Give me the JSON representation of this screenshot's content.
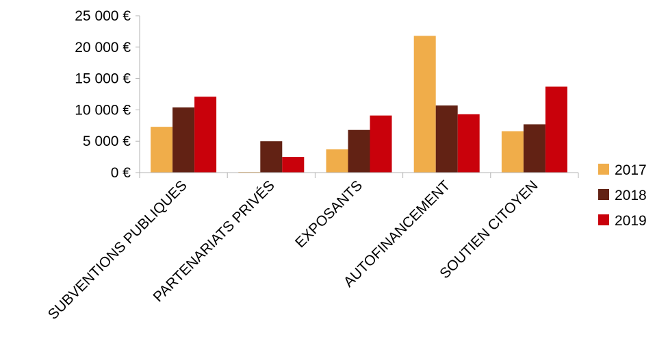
{
  "chart_data": {
    "type": "bar",
    "categories": [
      "SUBVENTIONS PUBLIQUES",
      "PARTENARIATS PRIVÉS",
      "EXPOSANTS",
      "AUTOFINANCEMENT",
      "SOUTIEN CITOYEN"
    ],
    "series": [
      {
        "name": "2017",
        "color": "#f0ad4a",
        "values": [
          7300,
          100,
          3700,
          21800,
          6600
        ]
      },
      {
        "name": "2018",
        "color": "#622214",
        "values": [
          10400,
          5000,
          6800,
          10700,
          7700
        ]
      },
      {
        "name": "2019",
        "color": "#c9010b",
        "values": [
          12100,
          2500,
          9100,
          9300,
          13700
        ]
      }
    ],
    "ylim": [
      0,
      25000
    ],
    "yticks": [
      0,
      5000,
      10000,
      15000,
      20000,
      25000
    ],
    "ytick_labels": [
      "0 €",
      "5 000 €",
      "10 000 €",
      "15 000 €",
      "20 000 €",
      "25 000 €"
    ],
    "grid": false,
    "legend_position": "right"
  }
}
